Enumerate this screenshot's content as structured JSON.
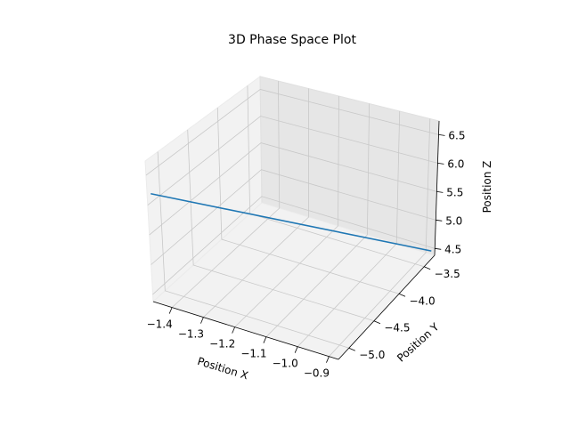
{
  "chart_data": {
    "type": "line",
    "projection": "3d",
    "title": "3D Phase Space Plot",
    "xlabel": "Position X",
    "ylabel": "Position Y",
    "zlabel": "Position Z",
    "x_ticks": [
      "−1.4",
      "−1.3",
      "−1.2",
      "−1.1",
      "−1.0",
      "−0.9"
    ],
    "y_ticks": [
      "−5.0",
      "−4.5",
      "−4.0",
      "−3.5"
    ],
    "z_ticks": [
      "4.5",
      "5.0",
      "5.5",
      "6.0",
      "6.5"
    ],
    "grid": true,
    "series": [
      {
        "color": "#1f77b4",
        "x": [
          -1.45,
          -0.88
        ],
        "y": [
          -5.2,
          -3.3
        ],
        "z": [
          6.2,
          4.45
        ]
      }
    ]
  }
}
